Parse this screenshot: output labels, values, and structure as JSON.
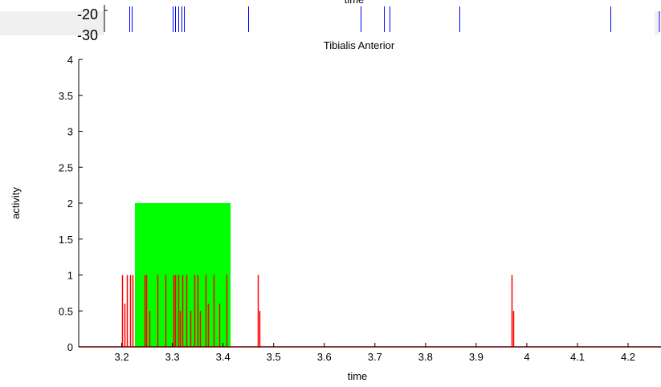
{
  "top_panel": {
    "xlabel_partial": "time",
    "ytick_label": "-20",
    "ytick_label_partial": "-30",
    "spike_x": [
      3.2,
      3.21,
      3.35,
      3.36,
      3.37,
      3.38,
      3.39,
      3.61,
      4.0,
      4.08,
      4.1,
      4.34,
      4.86
    ],
    "color": "#0000ff"
  },
  "chart_data": {
    "type": "line",
    "title": "Tibialis Anterior",
    "xlabel": "time",
    "ylabel": "activity",
    "xlim": [
      3.115,
      4.265
    ],
    "ylim": [
      0,
      4
    ],
    "xticks": [
      "3.2",
      "3.3",
      "3.4",
      "3.5",
      "3.6",
      "3.7",
      "3.8",
      "3.9",
      "4",
      "4.1",
      "4.2"
    ],
    "xtick_values": [
      3.2,
      3.3,
      3.4,
      3.5,
      3.6,
      3.7,
      3.8,
      3.9,
      4.0,
      4.1,
      4.2
    ],
    "yticks": [
      "0",
      "0.5",
      "1",
      "1.5",
      "2",
      "2.5",
      "3",
      "3.5",
      "4"
    ],
    "ytick_values": [
      0,
      0.5,
      1,
      1.5,
      2,
      2.5,
      3,
      3.5,
      4
    ],
    "grid": false,
    "series": [
      {
        "type": "area",
        "color": "#00ff00",
        "x_start": 3.226,
        "x_end": 3.415,
        "value": 2
      },
      {
        "type": "spikes",
        "color": "#ff0000",
        "baseline": 0,
        "spikes": [
          {
            "x": 3.2,
            "y": 1
          },
          {
            "x": 3.205,
            "y": 0.6
          },
          {
            "x": 3.21,
            "y": 1
          },
          {
            "x": 3.217,
            "y": 1
          },
          {
            "x": 3.222,
            "y": 1
          },
          {
            "x": 3.245,
            "y": 1
          },
          {
            "x": 3.249,
            "y": 1
          },
          {
            "x": 3.254,
            "y": 0.5
          },
          {
            "x": 3.271,
            "y": 1
          },
          {
            "x": 3.286,
            "y": 1
          },
          {
            "x": 3.302,
            "y": 1
          },
          {
            "x": 3.306,
            "y": 1
          },
          {
            "x": 3.311,
            "y": 1
          },
          {
            "x": 3.315,
            "y": 0.5
          },
          {
            "x": 3.32,
            "y": 1
          },
          {
            "x": 3.328,
            "y": 1
          },
          {
            "x": 3.335,
            "y": 0.5
          },
          {
            "x": 3.344,
            "y": 1
          },
          {
            "x": 3.349,
            "y": 1
          },
          {
            "x": 3.354,
            "y": 0.5
          },
          {
            "x": 3.365,
            "y": 1
          },
          {
            "x": 3.37,
            "y": 0.6
          },
          {
            "x": 3.382,
            "y": 1
          },
          {
            "x": 3.392,
            "y": 0.6
          },
          {
            "x": 3.407,
            "y": 1
          },
          {
            "x": 3.468,
            "y": 1
          },
          {
            "x": 3.472,
            "y": 0.5
          },
          {
            "x": 3.97,
            "y": 1
          },
          {
            "x": 3.973,
            "y": 0.5
          }
        ]
      }
    ]
  }
}
